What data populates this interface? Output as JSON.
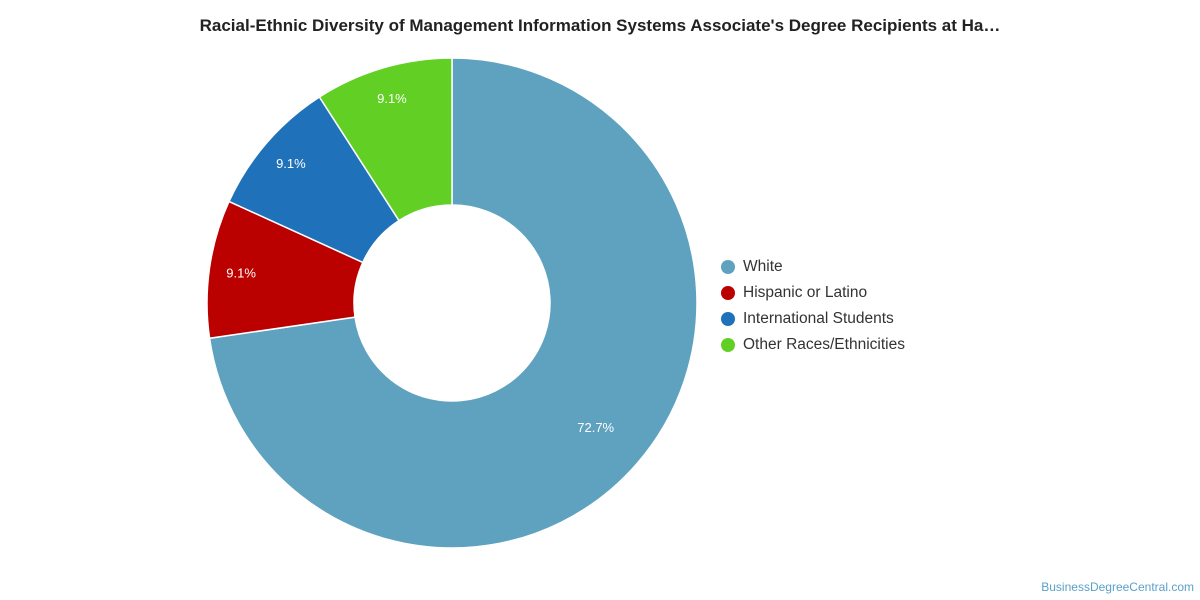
{
  "title": "Racial-Ethnic Diversity of Management Information Systems Associate's Degree Recipients at Ha…",
  "credit": "BusinessDegreeCentral.com",
  "chart_data": {
    "type": "pie",
    "donut": true,
    "title": "Racial-Ethnic Diversity of Management Information Systems Associate's Degree Recipients at Ha…",
    "legend_position": "right",
    "slices": [
      {
        "label": "White",
        "value": 72.7,
        "value_label": "72.7%",
        "color": "#5ea2c0"
      },
      {
        "label": "Hispanic or Latino",
        "value": 9.1,
        "value_label": "9.1%",
        "color": "#bb0000"
      },
      {
        "label": "International Students",
        "value": 9.1,
        "value_label": "9.1%",
        "color": "#1f72ba"
      },
      {
        "label": "Other Races/Ethnicities",
        "value": 9.1,
        "value_label": "9.1%",
        "color": "#62cf25"
      }
    ]
  }
}
